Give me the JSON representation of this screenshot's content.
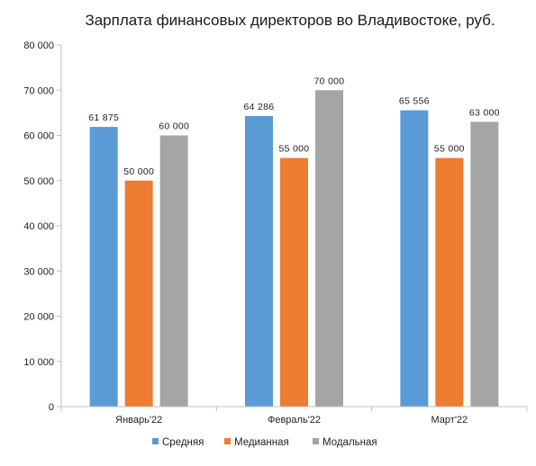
{
  "chart_data": {
    "type": "bar",
    "title": "Зарплата финансовых директоров во Владивостоке, руб.",
    "categories": [
      "Январь'22",
      "Февраль'22",
      "Март'22"
    ],
    "series": [
      {
        "name": "Средняя",
        "color": "#5b9bd5",
        "values": [
          61875,
          64286,
          65556
        ],
        "labels": [
          "61 875",
          "64 286",
          "65 556"
        ]
      },
      {
        "name": "Медианная",
        "color": "#ed7d31",
        "values": [
          50000,
          55000,
          55000
        ],
        "labels": [
          "50 000",
          "55 000",
          "55 000"
        ]
      },
      {
        "name": "Модальная",
        "color": "#a5a5a5",
        "values": [
          60000,
          70000,
          63000
        ],
        "labels": [
          "60 000",
          "70 000",
          "63 000"
        ]
      }
    ],
    "ylim": [
      0,
      80000
    ],
    "yticks": [
      0,
      10000,
      20000,
      30000,
      40000,
      50000,
      60000,
      70000,
      80000
    ],
    "ytick_labels": [
      "0",
      "10 000",
      "20 000",
      "30 000",
      "40 000",
      "50 000",
      "60 000",
      "70 000",
      "80 000"
    ],
    "grid": false,
    "legend_position": "bottom"
  }
}
